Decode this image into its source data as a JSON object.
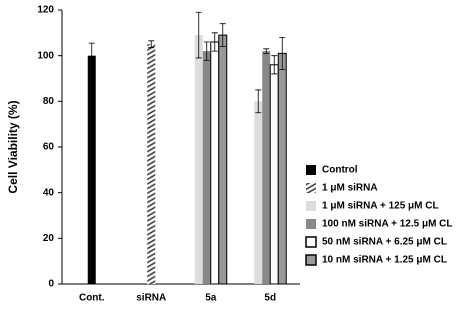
{
  "chart_data": {
    "type": "bar",
    "y_label": "Cell Viability (%)",
    "categories": [
      "Cont.",
      "siRNA",
      "5a",
      "5d"
    ],
    "series": [
      {
        "name": "Control",
        "color": "#000000",
        "values": [
          100,
          null,
          null,
          null
        ],
        "errors": [
          5.5,
          null,
          null,
          null
        ]
      },
      {
        "name": "1 μM siRNA",
        "color": "#555555",
        "hatch": true,
        "values": [
          null,
          105,
          null,
          null
        ],
        "errors": [
          null,
          1.5,
          null,
          null
        ]
      },
      {
        "name": "1 μM siRNA + 125 μM CL",
        "color": "#dddddd",
        "values": [
          null,
          null,
          109,
          80
        ],
        "errors": [
          null,
          null,
          10,
          5
        ]
      },
      {
        "name": "100 nM siRNA + 12.5 μM CL",
        "color": "#888888",
        "values": [
          null,
          null,
          102,
          102
        ],
        "errors": [
          null,
          null,
          4,
          1
        ]
      },
      {
        "name": "50 nM siRNA + 6.25 μM CL",
        "color": "#ffffff",
        "edgecolor": "#000000",
        "values": [
          null,
          null,
          106,
          96
        ],
        "errors": [
          null,
          null,
          4,
          4
        ]
      },
      {
        "name": "10 nM siRNA + 1.25 μM CL",
        "color": "#999999",
        "edgecolor": "#000000",
        "values": [
          null,
          null,
          109,
          101
        ],
        "errors": [
          null,
          null,
          5,
          7
        ]
      }
    ],
    "ylim": [
      0,
      120
    ],
    "yticks": [
      0,
      20,
      40,
      60,
      80,
      100,
      120
    ],
    "grid": false
  }
}
